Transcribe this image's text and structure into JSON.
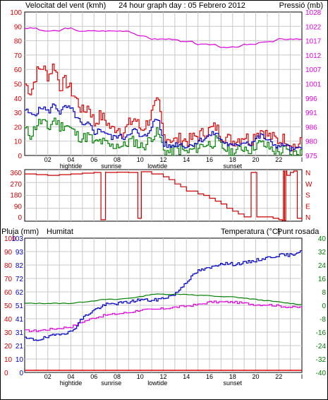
{
  "header": {
    "left_title": "Velocitat del vent (kmh)",
    "center_title": "24 hour graph day : 05 Febrero 2012",
    "right_title": "Pressió (mb)"
  },
  "colors": {
    "wind_avg": "#0000cc",
    "wind_gust": "#dd0000",
    "wind_low": "#008000",
    "pressure": "#dd00dd",
    "direction": "#cc0000",
    "humidity": "#0000cc",
    "temperature": "#008000",
    "dewpoint": "#dd00dd",
    "rain": "#dd0000",
    "grid": "#c8c8c8"
  },
  "x_ticks": [
    "02",
    "04",
    "06",
    "08",
    "10",
    "12",
    "14",
    "16",
    "18",
    "20",
    "22",
    "I"
  ],
  "events": [
    "hightide",
    "sunrise",
    "lowtide",
    "sunset"
  ],
  "chart_data": [
    {
      "type": "line",
      "name": "wind-pressure",
      "left_axis": {
        "label": "Velocitat del vent (kmh)",
        "ylim": [
          0,
          100
        ],
        "ticks": [
          "100",
          "90",
          "80",
          "70",
          "60",
          "50",
          "40",
          "30",
          "20",
          "10",
          "0"
        ]
      },
      "right_axis": {
        "label": "Pressió (mb)",
        "ticks": [
          "1028",
          "1022",
          "1017",
          "1012",
          "1007",
          "1001",
          "996",
          "991",
          "986",
          "980",
          "975"
        ]
      },
      "x_hours": [
        0,
        0.5,
        1,
        1.5,
        2,
        2.5,
        3,
        3.5,
        4,
        4.5,
        5,
        5.5,
        6,
        6.5,
        7,
        7.5,
        8,
        8.5,
        9,
        9.5,
        10,
        10.5,
        11,
        11.5,
        12,
        12.5,
        13,
        13.5,
        14,
        14.5,
        15,
        15.5,
        16,
        16.5,
        17,
        17.5,
        18,
        18.5,
        19,
        19.5,
        20,
        20.5,
        21,
        21.5,
        22,
        22.5,
        23,
        23.5,
        24
      ],
      "series": [
        {
          "key": "gust",
          "values": [
            50,
            44,
            58,
            62,
            55,
            64,
            48,
            52,
            45,
            38,
            30,
            35,
            22,
            28,
            24,
            18,
            20,
            16,
            22,
            26,
            18,
            22,
            30,
            38,
            14,
            12,
            10,
            12,
            10,
            12,
            14,
            16,
            18,
            20,
            14,
            12,
            10,
            12,
            14,
            10,
            16,
            18,
            14,
            12,
            10,
            12,
            8,
            6,
            10
          ]
        },
        {
          "key": "avg",
          "values": [
            32,
            28,
            30,
            34,
            30,
            36,
            30,
            34,
            32,
            26,
            20,
            22,
            16,
            18,
            16,
            12,
            14,
            12,
            16,
            18,
            12,
            14,
            22,
            26,
            8,
            6,
            8,
            8,
            6,
            8,
            10,
            12,
            14,
            16,
            10,
            8,
            6,
            8,
            10,
            8,
            12,
            14,
            10,
            8,
            6,
            8,
            4,
            4,
            6
          ]
        },
        {
          "key": "low",
          "values": [
            18,
            14,
            22,
            24,
            18,
            26,
            20,
            22,
            18,
            14,
            12,
            14,
            8,
            10,
            8,
            6,
            8,
            6,
            10,
            10,
            6,
            8,
            14,
            16,
            4,
            2,
            4,
            4,
            2,
            4,
            6,
            8,
            8,
            10,
            6,
            4,
            2,
            4,
            6,
            4,
            8,
            8,
            6,
            4,
            2,
            4,
            0,
            2,
            2
          ]
        },
        {
          "key": "pressure",
          "values": [
            1022,
            1022,
            1022,
            1021,
            1021,
            1021,
            1021,
            1022,
            1022,
            1021,
            1021,
            1021,
            1021,
            1021,
            1021,
            1021,
            1021,
            1021,
            1021,
            1020,
            1019,
            1019,
            1018,
            1018,
            1018,
            1018,
            1018,
            1017,
            1017,
            1017,
            1016,
            1016,
            1016,
            1016,
            1015,
            1015,
            1015,
            1015,
            1016,
            1016,
            1016,
            1017,
            1017,
            1017,
            1018,
            1018,
            1018,
            1018,
            1018
          ]
        }
      ]
    },
    {
      "type": "line",
      "name": "wind-direction",
      "left_axis": {
        "ylim": [
          0,
          360
        ],
        "ticks": [
          "360",
          "270",
          "180",
          "90",
          "0"
        ]
      },
      "right_axis": {
        "ticks": [
          "N",
          "W",
          "S",
          "E",
          "N"
        ]
      },
      "direction_points": [
        [
          0,
          340
        ],
        [
          1,
          335
        ],
        [
          2,
          330
        ],
        [
          3,
          335
        ],
        [
          4,
          340
        ],
        [
          5,
          345
        ],
        [
          6,
          350
        ],
        [
          6.5,
          350
        ],
        [
          6.6,
          20
        ],
        [
          6.9,
          20
        ],
        [
          7,
          350
        ],
        [
          8,
          352
        ],
        [
          9,
          350
        ],
        [
          9.7,
          350
        ],
        [
          9.8,
          30
        ],
        [
          10,
          30
        ],
        [
          10.1,
          355
        ],
        [
          10.6,
          355
        ],
        [
          11,
          340
        ],
        [
          12,
          320
        ],
        [
          12.5,
          300
        ],
        [
          13,
          270
        ],
        [
          13.5,
          250
        ],
        [
          14,
          220
        ],
        [
          14.5,
          220
        ],
        [
          15,
          200
        ],
        [
          15.5,
          190
        ],
        [
          16,
          170
        ],
        [
          16.5,
          150
        ],
        [
          17,
          130
        ],
        [
          17.5,
          100
        ],
        [
          18,
          80
        ],
        [
          18.5,
          60
        ],
        [
          19,
          40
        ],
        [
          19.5,
          40
        ],
        [
          19.6,
          350
        ],
        [
          20,
          350
        ],
        [
          20.1,
          40
        ],
        [
          21,
          40
        ],
        [
          21.5,
          30
        ],
        [
          22,
          20
        ],
        [
          22.3,
          5
        ],
        [
          22.4,
          360
        ],
        [
          22.5,
          10
        ],
        [
          22.6,
          360
        ],
        [
          22.7,
          330
        ],
        [
          23,
          350
        ],
        [
          23.3,
          360
        ],
        [
          23.5,
          360
        ],
        [
          23.6,
          30
        ],
        [
          24,
          20
        ]
      ]
    },
    {
      "type": "line",
      "name": "temp-humidity-rain",
      "header": {
        "left": "Pluja (mm)",
        "left2": "Humitat",
        "right": "Temperatura (°C)",
        "right2": "Punt rosada"
      },
      "left_axis": {
        "ticks": [
          "100",
          "90",
          "80",
          "70",
          "60",
          "50",
          "40",
          "30",
          "20",
          "10",
          "0"
        ]
      },
      "left2_axis": {
        "ticks": [
          "103",
          "93",
          "82",
          "72",
          "62",
          "51",
          "41",
          "31",
          "21",
          "10",
          "0"
        ]
      },
      "right_axis": {
        "ticks": [
          "40",
          "32",
          "24",
          "16",
          "8",
          "0",
          "-8",
          "-16",
          "-24",
          "-32",
          "-40"
        ]
      },
      "x_hours": [
        0,
        1,
        2,
        3,
        4,
        5,
        6,
        7,
        8,
        9,
        10,
        11,
        12,
        13,
        14,
        15,
        16,
        17,
        18,
        19,
        20,
        21,
        22,
        23,
        24
      ],
      "series": [
        {
          "key": "humidity",
          "values": [
            26,
            25,
            27,
            30,
            31,
            42,
            48,
            52,
            53,
            54,
            56,
            55,
            57,
            60,
            70,
            78,
            80,
            84,
            83,
            84,
            86,
            88,
            90,
            90,
            94
          ]
        },
        {
          "key": "temperature",
          "values": [
            53,
            53,
            53,
            53,
            53,
            54,
            55,
            56,
            56,
            57,
            58,
            60,
            60,
            60,
            60,
            59,
            59,
            58,
            58,
            57,
            56,
            55,
            54,
            53,
            52
          ]
        },
        {
          "key": "dewpoint",
          "values": [
            32,
            32,
            33,
            34,
            35,
            39,
            42,
            44,
            45,
            46,
            48,
            48,
            49,
            50,
            51,
            52,
            54,
            54,
            54,
            53,
            52,
            52,
            51,
            50,
            50
          ]
        },
        {
          "key": "rain",
          "values": [
            1,
            1,
            1,
            1,
            1,
            1,
            1,
            1,
            1,
            1,
            1,
            1,
            1,
            1,
            1,
            1,
            1,
            1,
            1,
            1,
            1,
            1,
            1,
            1,
            1
          ]
        }
      ]
    }
  ]
}
